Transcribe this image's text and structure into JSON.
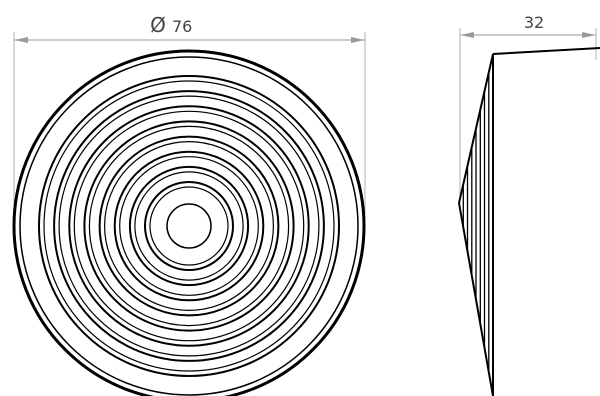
{
  "front_view": {
    "diameter_symbol": "Ø",
    "diameter_value": "76",
    "ring_count": 8
  },
  "side_view": {
    "depth_value": "32",
    "rib_count": 7
  },
  "colors": {
    "line": "#000000",
    "dimension": "#9a9a9a",
    "text": "#444444"
  }
}
